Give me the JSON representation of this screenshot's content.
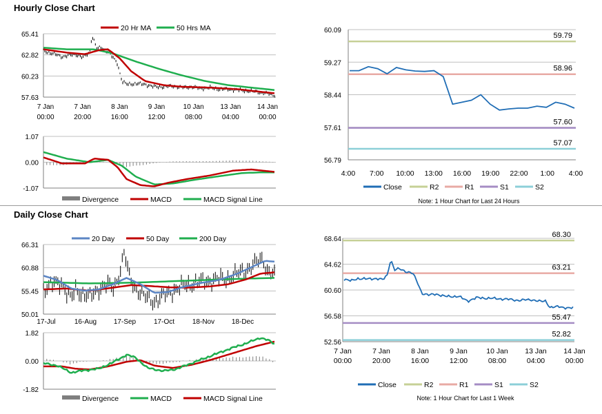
{
  "titles": {
    "hourly": "Hourly Close Chart",
    "daily": "Daily Close Chart"
  },
  "colors": {
    "close": "#1f6db5",
    "ma_short": "#c00000",
    "ma_long": "#1fae4e",
    "ma20": "#5b85c4",
    "r2": "#c6d096",
    "r1": "#e8aaa4",
    "s1": "#a58cc4",
    "s2": "#8ccfd8",
    "divergence": "#7f7f7f",
    "price_bars": "#000000"
  },
  "chart_data": [
    {
      "id": "hourly_price",
      "type": "line",
      "ylim": [
        57.63,
        65.41
      ],
      "yticks": [
        "65.41",
        "62.82",
        "60.23",
        "57.63"
      ],
      "xticks": [
        [
          "7 Jan",
          "00:00"
        ],
        [
          "7 Jan",
          "20:00"
        ],
        [
          "8 Jan",
          "16:00"
        ],
        [
          "9 Jan",
          "12:00"
        ],
        [
          "10 Jan",
          "08:00"
        ],
        [
          "13 Jan",
          "04:00"
        ],
        [
          "14 Jan",
          "00:00"
        ]
      ],
      "legend": [
        "20 Hr MA",
        "50 Hrs MA"
      ],
      "close_anchors": [
        [
          0,
          63.3
        ],
        [
          4,
          63.0
        ],
        [
          8,
          62.6
        ],
        [
          14,
          62.9
        ],
        [
          17,
          62.5
        ],
        [
          20,
          63.1
        ],
        [
          21,
          65.2
        ],
        [
          22,
          64.5
        ],
        [
          23,
          63.6
        ],
        [
          25,
          63.7
        ],
        [
          28,
          63.2
        ],
        [
          32,
          61.8
        ],
        [
          34,
          59.6
        ],
        [
          36,
          59.2
        ],
        [
          40,
          59.3
        ],
        [
          44,
          59.2
        ],
        [
          48,
          58.9
        ],
        [
          52,
          58.9
        ],
        [
          56,
          59.0
        ],
        [
          60,
          58.8
        ],
        [
          64,
          58.9
        ],
        [
          68,
          58.7
        ],
        [
          72,
          58.8
        ],
        [
          76,
          58.6
        ],
        [
          80,
          58.6
        ],
        [
          84,
          58.5
        ],
        [
          88,
          58.4
        ],
        [
          92,
          58.3
        ],
        [
          96,
          58.1
        ],
        [
          100,
          57.9
        ]
      ],
      "ma20_anchors": [
        [
          0,
          63.5
        ],
        [
          10,
          63.1
        ],
        [
          18,
          62.9
        ],
        [
          24,
          63.4
        ],
        [
          28,
          63.5
        ],
        [
          33,
          62.4
        ],
        [
          38,
          60.8
        ],
        [
          44,
          59.6
        ],
        [
          52,
          59.1
        ],
        [
          60,
          58.9
        ],
        [
          72,
          58.8
        ],
        [
          84,
          58.6
        ],
        [
          100,
          58.1
        ]
      ],
      "ma50_anchors": [
        [
          0,
          63.7
        ],
        [
          10,
          63.5
        ],
        [
          22,
          63.5
        ],
        [
          30,
          63.0
        ],
        [
          40,
          62.0
        ],
        [
          50,
          61.1
        ],
        [
          60,
          60.3
        ],
        [
          70,
          59.6
        ],
        [
          80,
          59.1
        ],
        [
          90,
          58.8
        ],
        [
          100,
          58.5
        ]
      ]
    },
    {
      "id": "hourly_macd",
      "type": "line",
      "ylim": [
        -1.07,
        1.07
      ],
      "yticks": [
        "1.07",
        "0.00",
        "-1.07"
      ],
      "legend": [
        "Divergence",
        "MACD",
        "MACD Signal Line"
      ],
      "macd_anchors": [
        [
          0,
          0.2
        ],
        [
          8,
          -0.05
        ],
        [
          18,
          -0.05
        ],
        [
          22,
          0.15
        ],
        [
          28,
          0.1
        ],
        [
          32,
          -0.2
        ],
        [
          36,
          -0.7
        ],
        [
          42,
          -0.95
        ],
        [
          48,
          -1.0
        ],
        [
          54,
          -0.85
        ],
        [
          62,
          -0.7
        ],
        [
          72,
          -0.55
        ],
        [
          82,
          -0.35
        ],
        [
          90,
          -0.3
        ],
        [
          100,
          -0.4
        ]
      ],
      "signal_anchors": [
        [
          0,
          0.42
        ],
        [
          10,
          0.15
        ],
        [
          20,
          0.0
        ],
        [
          28,
          0.1
        ],
        [
          34,
          -0.15
        ],
        [
          40,
          -0.6
        ],
        [
          48,
          -0.92
        ],
        [
          56,
          -0.88
        ],
        [
          66,
          -0.72
        ],
        [
          76,
          -0.58
        ],
        [
          86,
          -0.45
        ],
        [
          94,
          -0.42
        ],
        [
          100,
          -0.42
        ]
      ]
    },
    {
      "id": "hourly_pivot",
      "type": "line",
      "ylim": [
        56.79,
        60.09
      ],
      "yticks": [
        "60.09",
        "59.27",
        "58.44",
        "57.61",
        "56.79"
      ],
      "xticks": [
        "4:00",
        "7:00",
        "10:00",
        "13:00",
        "16:00",
        "19:00",
        "22:00",
        "1:00",
        "4:00"
      ],
      "close": [
        59.05,
        59.05,
        59.15,
        59.1,
        58.97,
        59.13,
        59.07,
        59.04,
        59.03,
        59.05,
        58.9,
        58.2,
        58.25,
        58.3,
        58.44,
        58.2,
        58.05,
        58.08,
        58.1,
        58.1,
        58.15,
        58.12,
        58.25,
        58.2,
        58.1
      ],
      "levels": [
        {
          "name": "R2",
          "value": 59.79,
          "label": "59.79"
        },
        {
          "name": "R1",
          "value": 58.96,
          "label": "58.96"
        },
        {
          "name": "S1",
          "value": 57.6,
          "label": "57.60"
        },
        {
          "name": "S2",
          "value": 57.07,
          "label": "57.07"
        }
      ],
      "legend": [
        "Close",
        "R2",
        "R1",
        "S1",
        "S2"
      ],
      "note": "Note: 1 Hour Chart for Last 24 Hours"
    },
    {
      "id": "daily_price",
      "type": "line",
      "ylim": [
        50.01,
        66.31
      ],
      "yticks": [
        "66.31",
        "60.88",
        "55.45",
        "50.01"
      ],
      "xticks": [
        "17-Jul",
        "16-Aug",
        "17-Sep",
        "17-Oct",
        "18-Nov",
        "18-Dec"
      ],
      "legend": [
        "20 Day",
        "50 Day",
        "200 Day"
      ],
      "close_anchors": [
        [
          0,
          56
        ],
        [
          4,
          57
        ],
        [
          8,
          57.5
        ],
        [
          10,
          55
        ],
        [
          12,
          53.5
        ],
        [
          14,
          56
        ],
        [
          16,
          55
        ],
        [
          20,
          54
        ],
        [
          24,
          56
        ],
        [
          28,
          57
        ],
        [
          30,
          56
        ],
        [
          32,
          58
        ],
        [
          34,
          62
        ],
        [
          35,
          64.5
        ],
        [
          37,
          59
        ],
        [
          40,
          56
        ],
        [
          44,
          54
        ],
        [
          48,
          53
        ],
        [
          50,
          53.5
        ],
        [
          54,
          55
        ],
        [
          58,
          56
        ],
        [
          62,
          57
        ],
        [
          68,
          57.5
        ],
        [
          74,
          58
        ],
        [
          80,
          58.5
        ],
        [
          86,
          60
        ],
        [
          90,
          61
        ],
        [
          93,
          62.5
        ],
        [
          95,
          63
        ],
        [
          97,
          60
        ],
        [
          100,
          59
        ]
      ],
      "ma20_anchors": [
        [
          0,
          59
        ],
        [
          6,
          58
        ],
        [
          12,
          56
        ],
        [
          18,
          55.5
        ],
        [
          24,
          55.8
        ],
        [
          30,
          57
        ],
        [
          36,
          58.5
        ],
        [
          42,
          57
        ],
        [
          48,
          55
        ],
        [
          54,
          55.2
        ],
        [
          60,
          56.3
        ],
        [
          68,
          57.3
        ],
        [
          76,
          58
        ],
        [
          84,
          59.5
        ],
        [
          90,
          61
        ],
        [
          96,
          62.5
        ],
        [
          100,
          62.3
        ]
      ],
      "ma50_anchors": [
        [
          0,
          55.8
        ],
        [
          10,
          56
        ],
        [
          20,
          55.5
        ],
        [
          30,
          56.2
        ],
        [
          38,
          56.8
        ],
        [
          46,
          56.6
        ],
        [
          54,
          56.3
        ],
        [
          62,
          56.2
        ],
        [
          72,
          56.5
        ],
        [
          80,
          57
        ],
        [
          88,
          58.2
        ],
        [
          94,
          59.5
        ],
        [
          100,
          59.8
        ]
      ],
      "ma200_anchors": [
        [
          0,
          57.5
        ],
        [
          20,
          57.2
        ],
        [
          40,
          57.4
        ],
        [
          60,
          57.8
        ],
        [
          80,
          58.2
        ],
        [
          100,
          58.5
        ]
      ]
    },
    {
      "id": "daily_macd",
      "type": "line",
      "ylim": [
        -1.82,
        1.82
      ],
      "yticks": [
        "1.82",
        "0.00",
        "-1.82"
      ],
      "legend": [
        "Divergence",
        "MACD",
        "MACD Signal Line"
      ],
      "macd_anchors": [
        [
          0,
          -0.15
        ],
        [
          6,
          -0.3
        ],
        [
          12,
          -0.75
        ],
        [
          18,
          -0.6
        ],
        [
          24,
          -0.5
        ],
        [
          30,
          -0.1
        ],
        [
          36,
          0.4
        ],
        [
          40,
          0.2
        ],
        [
          45,
          -0.45
        ],
        [
          52,
          -0.65
        ],
        [
          58,
          -0.5
        ],
        [
          64,
          -0.15
        ],
        [
          72,
          0.3
        ],
        [
          80,
          0.75
        ],
        [
          88,
          1.15
        ],
        [
          94,
          1.5
        ],
        [
          97,
          1.35
        ],
        [
          100,
          1.1
        ]
      ],
      "signal_anchors": [
        [
          0,
          -0.35
        ],
        [
          8,
          -0.35
        ],
        [
          14,
          -0.5
        ],
        [
          20,
          -0.55
        ],
        [
          28,
          -0.35
        ],
        [
          36,
          -0.05
        ],
        [
          42,
          0.05
        ],
        [
          48,
          -0.3
        ],
        [
          56,
          -0.45
        ],
        [
          64,
          -0.25
        ],
        [
          72,
          0.05
        ],
        [
          82,
          0.5
        ],
        [
          92,
          0.95
        ],
        [
          100,
          1.25
        ]
      ]
    },
    {
      "id": "weekly_pivot",
      "type": "line",
      "ylim": [
        52.56,
        68.64
      ],
      "yticks": [
        "68.64",
        "64.62",
        "60.60",
        "56.58",
        "52.56"
      ],
      "xticks": [
        [
          "7 Jan",
          "00:00"
        ],
        [
          "7 Jan",
          "20:00"
        ],
        [
          "8 Jan",
          "16:00"
        ],
        [
          "9 Jan",
          "12:00"
        ],
        [
          "10 Jan",
          "08:00"
        ],
        [
          "13 Jan",
          "04:00"
        ],
        [
          "14 Jan",
          "00:00"
        ]
      ],
      "close_anchors": [
        [
          0,
          62.3
        ],
        [
          3,
          62.0
        ],
        [
          6,
          62.4
        ],
        [
          10,
          62.3
        ],
        [
          14,
          62.4
        ],
        [
          17,
          62.2
        ],
        [
          19,
          63.0
        ],
        [
          20,
          65.0
        ],
        [
          21,
          64.9
        ],
        [
          22,
          63.7
        ],
        [
          24,
          63.9
        ],
        [
          27,
          63.5
        ],
        [
          30,
          63.2
        ],
        [
          32,
          61.8
        ],
        [
          34,
          60.1
        ],
        [
          37,
          59.8
        ],
        [
          40,
          60.0
        ],
        [
          44,
          59.6
        ],
        [
          50,
          59.6
        ],
        [
          54,
          58.9
        ],
        [
          58,
          59.4
        ],
        [
          64,
          59.3
        ],
        [
          70,
          59.2
        ],
        [
          76,
          59.0
        ],
        [
          82,
          59.1
        ],
        [
          86,
          58.8
        ],
        [
          88,
          58.9
        ],
        [
          90,
          57.9
        ],
        [
          94,
          58.0
        ],
        [
          98,
          57.8
        ],
        [
          100,
          57.8
        ]
      ],
      "levels": [
        {
          "name": "R2",
          "value": 68.3,
          "label": "68.30"
        },
        {
          "name": "R1",
          "value": 63.21,
          "label": "63.21"
        },
        {
          "name": "S1",
          "value": 55.47,
          "label": "55.47"
        },
        {
          "name": "S2",
          "value": 52.82,
          "label": "52.82"
        }
      ],
      "legend": [
        "Close",
        "R2",
        "R1",
        "S1",
        "S2"
      ],
      "note": "Note: 1 Hour Chart for Last 1 Week"
    }
  ]
}
